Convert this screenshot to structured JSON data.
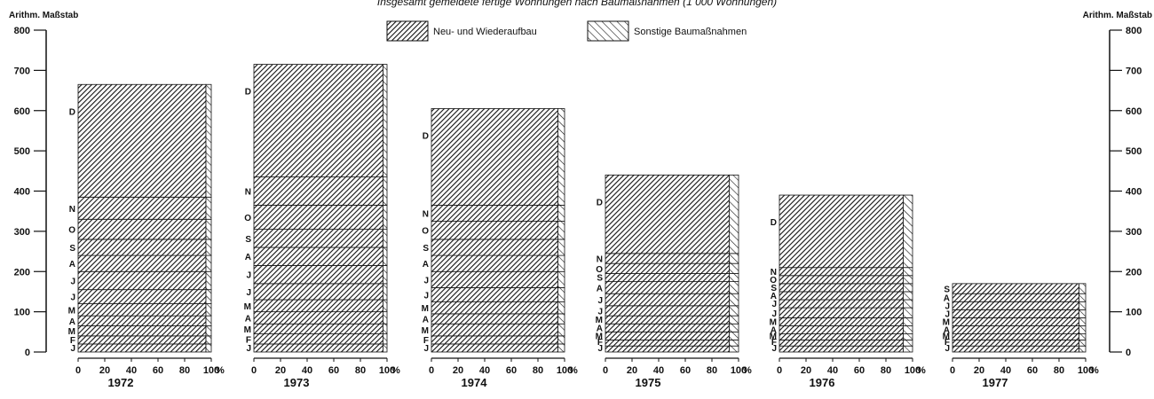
{
  "chart_data": {
    "type": "bar",
    "title": "Insgesamt gemeldete fertige Wohnungen nach Baumaßnahmen (1 000 Wohnungen)",
    "ylabel_left": "Arithm. Maßstab",
    "ylabel_right": "Arithm. Maßstab",
    "ylim": [
      0,
      800
    ],
    "yticks": [
      "0",
      "100",
      "200",
      "300",
      "400",
      "500",
      "600",
      "700",
      "800"
    ],
    "xticks": [
      "0",
      "20",
      "40",
      "60",
      "80",
      "100"
    ],
    "x_unit": "%",
    "legend": [
      {
        "name": "Neu- und Wiederaufbau",
        "pattern": "dense-hatch"
      },
      {
        "name": "Sonstige Baumaßnahmen",
        "pattern": "sparse-hatch"
      }
    ],
    "legend_position": "top-center",
    "series": [
      {
        "year": "1972",
        "neu_pct": 96,
        "months": [
          {
            "label": "J",
            "cum": 20
          },
          {
            "label": "F",
            "cum": 40
          },
          {
            "label": "M",
            "cum": 65
          },
          {
            "label": "A",
            "cum": 90
          },
          {
            "label": "M",
            "cum": 120
          },
          {
            "label": "J",
            "cum": 155
          },
          {
            "label": "J",
            "cum": 200
          },
          {
            "label": "A",
            "cum": 240
          },
          {
            "label": "S",
            "cum": 280
          },
          {
            "label": "O",
            "cum": 330
          },
          {
            "label": "N",
            "cum": 385
          },
          {
            "label": "D",
            "cum": 665
          }
        ],
        "labels": [
          "J",
          "F",
          "M",
          "A",
          "M",
          "J",
          "J",
          "A",
          "S",
          "O",
          "N",
          "D"
        ]
      },
      {
        "year": "1973",
        "neu_pct": 97,
        "months": [
          {
            "label": "J",
            "cum": 20
          },
          {
            "label": "F",
            "cum": 45
          },
          {
            "label": "M",
            "cum": 70
          },
          {
            "label": "A",
            "cum": 100
          },
          {
            "label": "M",
            "cum": 130
          },
          {
            "label": "J",
            "cum": 170
          },
          {
            "label": "J",
            "cum": 215
          },
          {
            "label": "A",
            "cum": 260
          },
          {
            "label": "S",
            "cum": 305
          },
          {
            "label": "O",
            "cum": 365
          },
          {
            "label": "N",
            "cum": 435
          },
          {
            "label": "D",
            "cum": 715
          }
        ],
        "labels": [
          "J",
          "F",
          "M",
          "A",
          "M",
          "J",
          "J",
          "A",
          "S",
          "O",
          "N",
          "D"
        ]
      },
      {
        "year": "1974",
        "neu_pct": 95,
        "months": [
          {
            "label": "J",
            "cum": 20
          },
          {
            "label": "F",
            "cum": 40
          },
          {
            "label": "M",
            "cum": 70
          },
          {
            "label": "A",
            "cum": 95
          },
          {
            "label": "M",
            "cum": 125
          },
          {
            "label": "J",
            "cum": 160
          },
          {
            "label": "J",
            "cum": 200
          },
          {
            "label": "A",
            "cum": 240
          },
          {
            "label": "S",
            "cum": 280
          },
          {
            "label": "O",
            "cum": 325
          },
          {
            "label": "N",
            "cum": 365
          },
          {
            "label": "D",
            "cum": 605
          }
        ],
        "labels": [
          "J",
          "F",
          "M",
          "A",
          "M",
          "J",
          "J",
          "A",
          "S",
          "O",
          "N",
          "D"
        ]
      },
      {
        "year": "1975",
        "neu_pct": 93,
        "months": [
          {
            "label": "J",
            "cum": 15
          },
          {
            "label": "F",
            "cum": 30
          },
          {
            "label": "M",
            "cum": 50
          },
          {
            "label": "A",
            "cum": 70
          },
          {
            "label": "M",
            "cum": 90
          },
          {
            "label": "J",
            "cum": 115
          },
          {
            "label": "J",
            "cum": 145
          },
          {
            "label": "A",
            "cum": 175
          },
          {
            "label": "S",
            "cum": 195
          },
          {
            "label": "O",
            "cum": 220
          },
          {
            "label": "N",
            "cum": 245
          },
          {
            "label": "D",
            "cum": 440
          }
        ],
        "labels": [
          "J",
          "F",
          "M",
          "A",
          "M",
          "J",
          "J",
          "A",
          "S",
          "O",
          "N",
          "D"
        ]
      },
      {
        "year": "1976",
        "neu_pct": 93,
        "months": [
          {
            "label": "J",
            "cum": 15
          },
          {
            "label": "F",
            "cum": 30
          },
          {
            "label": "M",
            "cum": 45
          },
          {
            "label": "A",
            "cum": 65
          },
          {
            "label": "M",
            "cum": 85
          },
          {
            "label": "J",
            "cum": 110
          },
          {
            "label": "J",
            "cum": 130
          },
          {
            "label": "A",
            "cum": 150
          },
          {
            "label": "S",
            "cum": 170
          },
          {
            "label": "O",
            "cum": 190
          },
          {
            "label": "N",
            "cum": 210
          },
          {
            "label": "D",
            "cum": 390
          }
        ],
        "labels": [
          "J",
          "F",
          "M",
          "A",
          "M",
          "J",
          "J",
          "A",
          "S",
          "O",
          "N",
          "D"
        ]
      },
      {
        "year": "1977",
        "neu_pct": 95,
        "months": [
          {
            "label": "J",
            "cum": 15
          },
          {
            "label": "F",
            "cum": 30
          },
          {
            "label": "M",
            "cum": 45
          },
          {
            "label": "A",
            "cum": 65
          },
          {
            "label": "M",
            "cum": 85
          },
          {
            "label": "J",
            "cum": 105
          },
          {
            "label": "J",
            "cum": 125
          },
          {
            "label": "A",
            "cum": 145
          },
          {
            "label": "S",
            "cum": 170
          }
        ],
        "labels": [
          "J",
          "F",
          "M",
          "A",
          "M",
          "J",
          "J",
          "A",
          "S"
        ]
      }
    ]
  }
}
